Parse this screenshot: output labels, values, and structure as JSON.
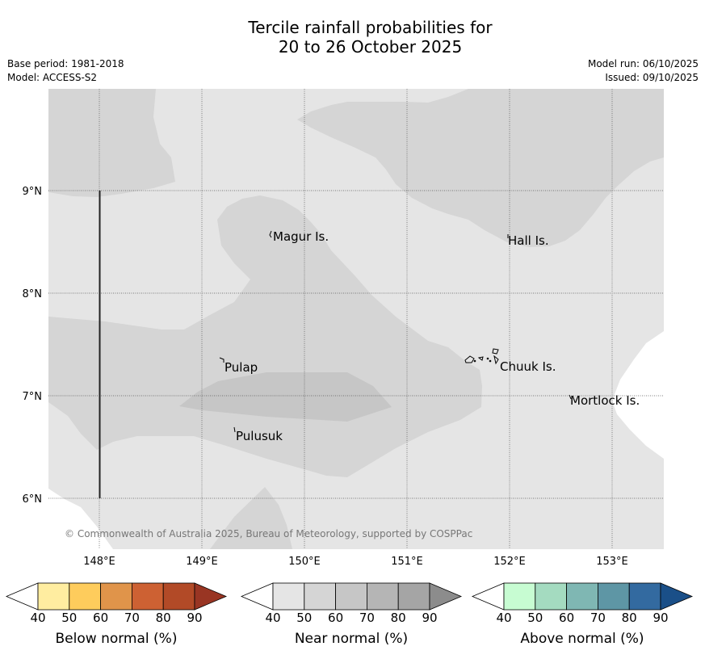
{
  "title": {
    "line1": "Tercile rainfall probabilities for",
    "line2": "20 to 26 October 2025"
  },
  "meta": {
    "base_period": "Base period: 1981-2018",
    "model": "Model: ACCESS-S2",
    "model_run": "Model run: 06/10/2025",
    "issued": "Issued: 09/10/2025"
  },
  "map": {
    "lon_labels": [
      "148°E",
      "149°E",
      "150°E",
      "151°E",
      "152°E",
      "153°E"
    ],
    "lat_labels": [
      "9°N",
      "8°N",
      "7°N",
      "6°N"
    ],
    "places": {
      "magur": "Magur Is.",
      "hall": "Hall Is.",
      "pulap": "Pulap",
      "chuuk": "Chuuk Is.",
      "mortlock": "Mortlock Is.",
      "pulusuk": "Pulusuk"
    },
    "copyright": "© Commonwealth of Australia 2025, Bureau of Meteorology, supported by COSPPac",
    "colors": {
      "near_normal_40": "#e5e5e5",
      "near_normal_50": "#d5d5d5",
      "near_normal_60": "#c6c6c6",
      "below_40_none": "#ffffff"
    }
  },
  "colorbars": {
    "ticks": [
      "40",
      "50",
      "60",
      "70",
      "80",
      "90"
    ],
    "below": {
      "label": "Below normal (%)",
      "colors": [
        "#ffffff",
        "#ffeda0",
        "#fecc5c",
        "#e0944a",
        "#cd6133",
        "#b24a27",
        "#993523"
      ]
    },
    "near": {
      "label": "Near normal (%)",
      "colors": [
        "#ffffff",
        "#e5e5e5",
        "#d5d5d5",
        "#c6c6c6",
        "#b5b5b5",
        "#a5a5a5",
        "#8c8c8c"
      ]
    },
    "above": {
      "label": "Above normal (%)",
      "colors": [
        "#ffffff",
        "#c7fcd2",
        "#a4dbc0",
        "#7fb7b3",
        "#5e96a5",
        "#336aa0",
        "#1a4f88"
      ]
    }
  }
}
